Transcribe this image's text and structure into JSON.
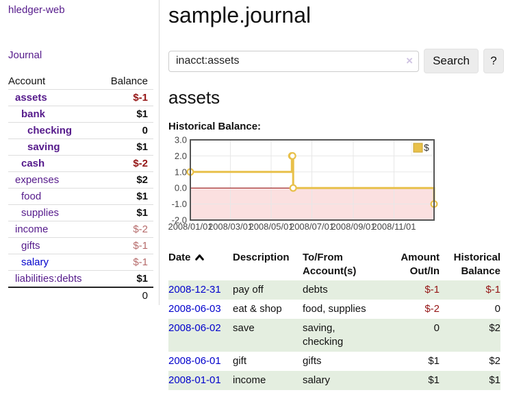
{
  "sidebar": {
    "app_title": "hledger-web",
    "journal_link": "Journal",
    "accounts_table": {
      "account_header": "Account",
      "balance_header": "Balance",
      "rows": [
        {
          "account": "assets",
          "depth": 0,
          "bold": true,
          "balance": "$-1",
          "balance_style": "neg-strong"
        },
        {
          "account": "bank",
          "depth": 1,
          "bold": true,
          "balance": "$1",
          "balance_style": "pos"
        },
        {
          "account": "checking",
          "depth": 2,
          "bold": true,
          "balance": "0",
          "balance_style": "pos"
        },
        {
          "account": "saving",
          "depth": 2,
          "bold": true,
          "balance": "$1",
          "balance_style": "pos"
        },
        {
          "account": "cash",
          "depth": 1,
          "bold": true,
          "balance": "$-2",
          "balance_style": "neg-strong"
        },
        {
          "account": "expenses",
          "depth": 0,
          "bold": false,
          "balance": "$2",
          "balance_style": "pos"
        },
        {
          "account": "food",
          "depth": 1,
          "bold": false,
          "balance": "$1",
          "balance_style": "pos"
        },
        {
          "account": "supplies",
          "depth": 1,
          "bold": false,
          "balance": "$1",
          "balance_style": "pos"
        },
        {
          "account": "income",
          "depth": 0,
          "bold": false,
          "balance": "$-2",
          "balance_style": "neg-faint"
        },
        {
          "account": "gifts",
          "depth": 1,
          "bold": false,
          "balance": "$-1",
          "balance_style": "neg-faint"
        },
        {
          "account": "salary",
          "depth": 1,
          "bold": false,
          "balance": "$-1",
          "balance_style": "neg-faint",
          "link_style": "blue"
        },
        {
          "account": "liabilities:debts",
          "depth": 0,
          "bold": false,
          "balance": "$1",
          "balance_style": "pos"
        }
      ],
      "total": "0"
    }
  },
  "header": {
    "title": "sample.journal"
  },
  "search": {
    "value": "inacct:assets",
    "clear_icon": "×",
    "button_label": "Search",
    "help_label": "?"
  },
  "account_page": {
    "heading": "assets",
    "chart_label": "Historical Balance:"
  },
  "chart_data": {
    "type": "line",
    "title": "Historical Balance:",
    "step": true,
    "series_label": "$",
    "line_color": "#e8c04a",
    "marker_fill": "#ffffff",
    "legend_square_color": "#e8c04a",
    "legend_border_color": "#c9a434",
    "zero_line_color": "#8b0000",
    "negative_region_color": "#fbe0e0",
    "grid_color": "#e7e7e7",
    "border_color": "#545454",
    "label_color": "#444444",
    "x_start": "2008/01/01",
    "x_end": "2008/12/31",
    "x_ticks": [
      "2008/01/01",
      "2008/03/01",
      "2008/05/01",
      "2008/07/01",
      "2008/09/01",
      "2008/11/01"
    ],
    "y_ticks": [
      3.0,
      2.0,
      1.0,
      0.0,
      -1.0,
      -2.0
    ],
    "y_tick_labels": [
      "3.0",
      "2.0",
      "1.0",
      "0.0",
      "-1.0",
      "-2.0"
    ],
    "ylim": [
      -2,
      3
    ],
    "legend_position": "top-right",
    "points": [
      {
        "date": "2008-01-01",
        "value": 1
      },
      {
        "date": "2008-06-01",
        "value": 2
      },
      {
        "date": "2008-06-02",
        "value": 2
      },
      {
        "date": "2008-06-03",
        "value": 0
      },
      {
        "date": "2008-12-31",
        "value": -1
      }
    ]
  },
  "register_table": {
    "columns": [
      {
        "line1": "Date",
        "line2": "",
        "align": "left",
        "sort": "asc"
      },
      {
        "line1": "Description",
        "line2": "",
        "align": "left"
      },
      {
        "line1": "To/From",
        "line2": "Account(s)",
        "align": "left"
      },
      {
        "line1": "Amount",
        "line2": "Out/In",
        "align": "right"
      },
      {
        "line1": "Historical",
        "line2": "Balance",
        "align": "right"
      }
    ],
    "rows": [
      {
        "date": "2008-12-31",
        "description": "pay off",
        "accounts": "debts",
        "amount": "$-1",
        "balance": "$-1",
        "shaded": true
      },
      {
        "date": "2008-06-03",
        "description": "eat & shop",
        "accounts": "food, supplies",
        "amount": "$-2",
        "balance": "0",
        "shaded": false
      },
      {
        "date": "2008-06-02",
        "description": "save",
        "accounts": "saving,\nchecking",
        "amount": "0",
        "balance": "$2",
        "shaded": true
      },
      {
        "date": "2008-06-01",
        "description": "gift",
        "accounts": "gifts",
        "amount": "$1",
        "balance": "$2",
        "shaded": false
      },
      {
        "date": "2008-01-01",
        "description": "income",
        "accounts": "salary",
        "amount": "$1",
        "balance": "$1",
        "shaded": true
      }
    ]
  }
}
